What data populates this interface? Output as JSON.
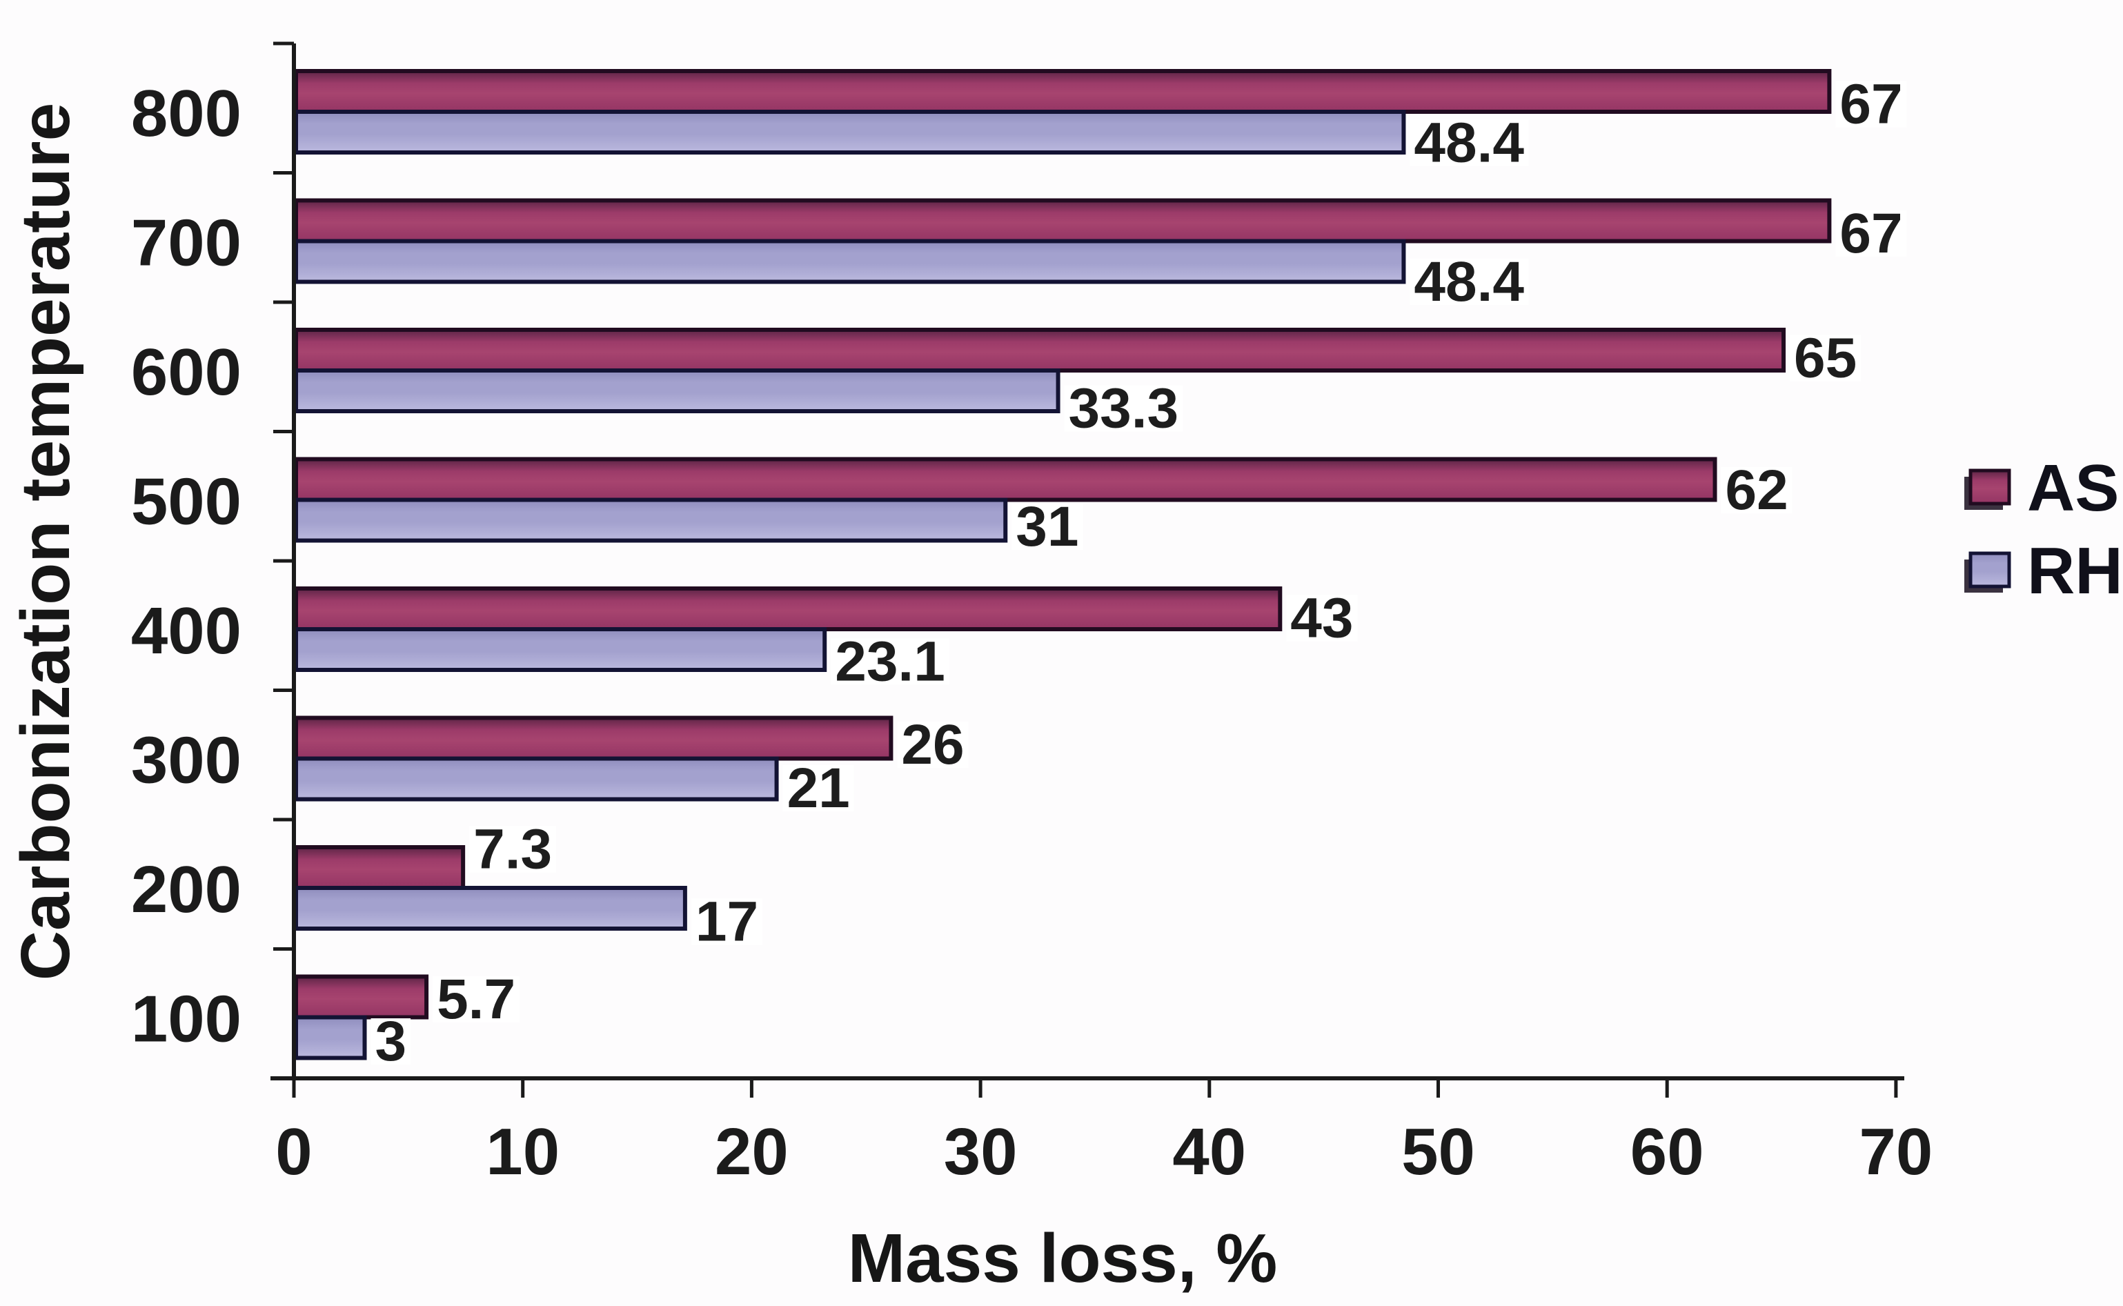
{
  "chart_data": {
    "type": "bar",
    "orientation": "horizontal",
    "title": "",
    "xlabel": "Mass loss, %",
    "ylabel": "Carbonization temperature",
    "categories": [
      "800",
      "700",
      "600",
      "500",
      "400",
      "300",
      "200",
      "100"
    ],
    "series": [
      {
        "name": "AS",
        "values": [
          67,
          67,
          65,
          62,
          43,
          26,
          7.3,
          5.7
        ],
        "labels": [
          "67",
          "67",
          "65",
          "62",
          "43",
          "26",
          "7.3",
          "5.7"
        ],
        "label_dy": [
          17,
          17,
          10,
          14,
          12,
          8,
          -28,
          2
        ],
        "fill_top": "#5d2546",
        "fill_mid": "#a7446f",
        "fill_main": "#9c3b69",
        "fill_bottom": "#943564",
        "border_color": "#210b20"
      },
      {
        "name": "RH",
        "values": [
          48.4,
          48.4,
          33.3,
          31,
          23.1,
          21,
          17,
          3
        ],
        "labels": [
          "48.4",
          "48.4",
          "33.3",
          "31",
          "23.1",
          "21",
          "17",
          "3"
        ],
        "label_dy": [
          14,
          28,
          24,
          8,
          16,
          12,
          18,
          4
        ],
        "fill_top": "#8f8dbd",
        "fill_mid": "#a3a1ce",
        "fill_main": "#a3a1ce",
        "fill_bottom": "#bbb9de",
        "border_color": "#131334"
      }
    ],
    "xlim": [
      0,
      70
    ],
    "xticks": [
      0,
      10,
      20,
      30,
      40,
      50,
      60,
      70
    ],
    "legend_position": "right",
    "legend_entries": [
      "AS",
      "RH"
    ],
    "grid": false,
    "axis_color": "#1a1a1a",
    "text_color": "#1b1b1b",
    "background_color": "#fdfcfd",
    "label_background": "#ffffff"
  }
}
